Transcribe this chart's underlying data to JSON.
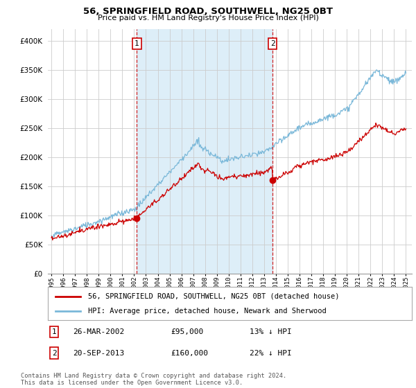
{
  "title": "56, SPRINGFIELD ROAD, SOUTHWELL, NG25 0BT",
  "subtitle": "Price paid vs. HM Land Registry's House Price Index (HPI)",
  "legend_line1": "56, SPRINGFIELD ROAD, SOUTHWELL, NG25 0BT (detached house)",
  "legend_line2": "HPI: Average price, detached house, Newark and Sherwood",
  "transaction1_date": "26-MAR-2002",
  "transaction1_price": "£95,000",
  "transaction1_hpi": "13% ↓ HPI",
  "transaction1_year": 2002.23,
  "transaction1_value": 95000,
  "transaction2_date": "20-SEP-2013",
  "transaction2_price": "£160,000",
  "transaction2_hpi": "22% ↓ HPI",
  "transaction2_year": 2013.72,
  "transaction2_value": 160000,
  "hpi_color": "#7ab8d9",
  "hpi_fill_color": "#d6eaf8",
  "price_color": "#cc0000",
  "marker_color": "#cc0000",
  "vline_color": "#cc0000",
  "ylim_min": 0,
  "ylim_max": 420000,
  "footnote": "Contains HM Land Registry data © Crown copyright and database right 2024.\nThis data is licensed under the Open Government Licence v3.0.",
  "background_color": "#ffffff",
  "grid_color": "#cccccc",
  "shade_color": "#ddeef8"
}
